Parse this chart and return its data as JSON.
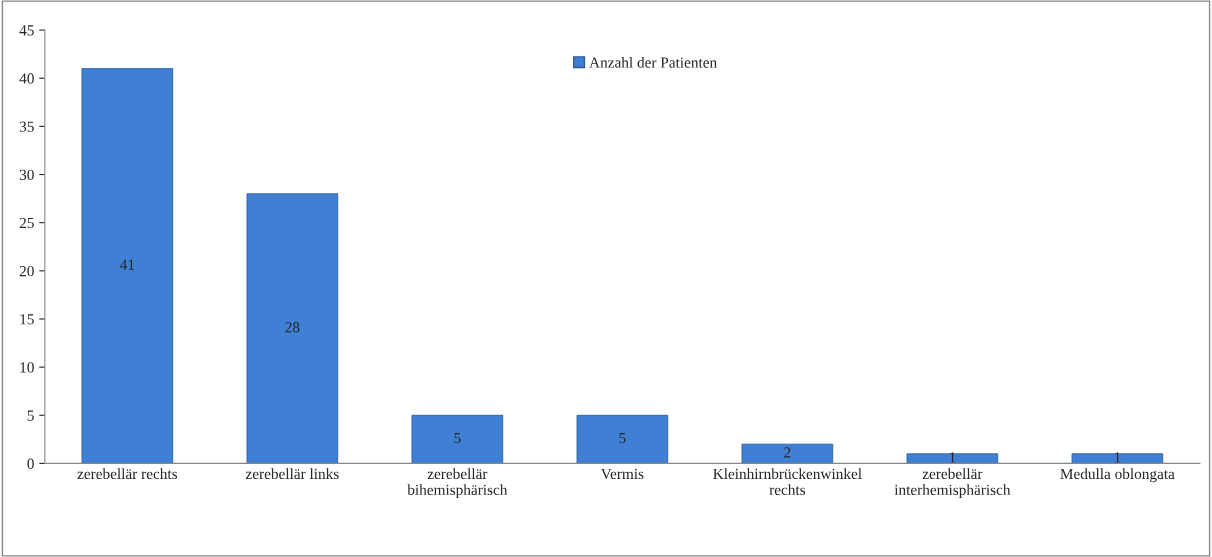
{
  "chart_data": {
    "type": "bar",
    "categories": [
      "zerebellär rechts",
      "zerebellär links",
      "zerebellär\nbihemisphärisch",
      "Vermis",
      "Kleinhirnbrückenwinkel\nrechts",
      "zerebellär\ninterhemisphärisch",
      "Medulla oblongata"
    ],
    "series": [
      {
        "name": "Anzahl der Patienten",
        "color": "#3f80d4",
        "values": [
          41,
          28,
          5,
          5,
          2,
          1,
          1
        ]
      }
    ],
    "ylim": [
      0,
      45
    ],
    "yticks": [
      0,
      5,
      10,
      15,
      20,
      25,
      30,
      35,
      40,
      45
    ],
    "data_labels": true,
    "legend": "top",
    "grid": false
  }
}
